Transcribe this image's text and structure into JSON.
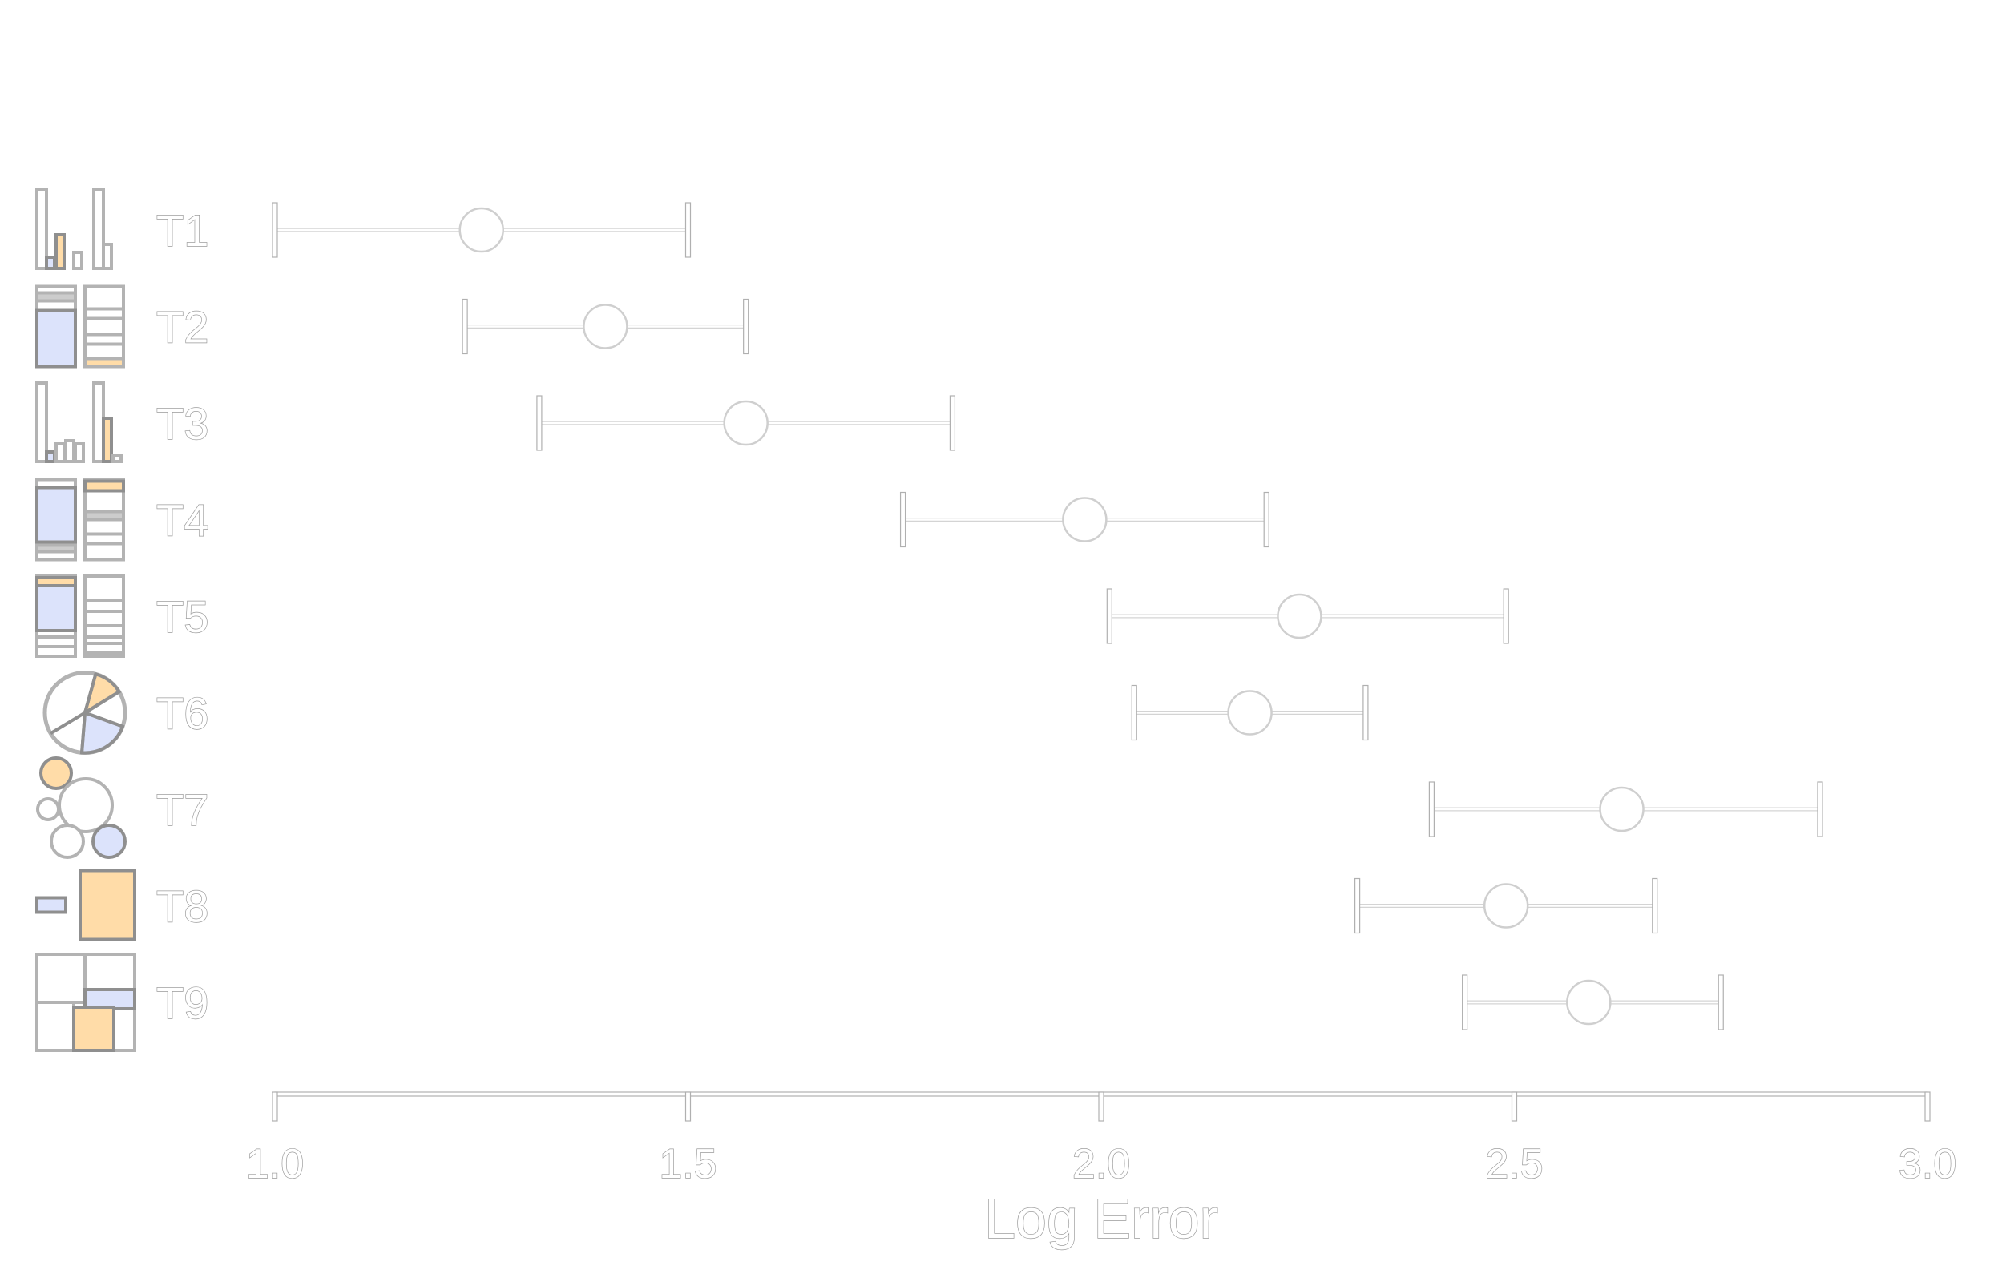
{
  "chart_data": {
    "type": "scatter",
    "title": "",
    "xlabel": "Log Error",
    "ylabel": "",
    "xlim": [
      1.0,
      3.0
    ],
    "grid": false,
    "x_ticks": [
      "1.0",
      "1.5",
      "2.0",
      "2.5",
      "3.0"
    ],
    "categories": [
      "T1",
      "T2",
      "T3",
      "T4",
      "T5",
      "T6",
      "T7",
      "T8",
      "T9"
    ],
    "category_icons": [
      "bar-chart-icon",
      "stacked-bar-icon",
      "bar-chart-icon",
      "stacked-bar-icon",
      "stacked-bar-icon",
      "pie-chart-icon",
      "bubble-chart-icon",
      "area-comparison-icon",
      "treemap-icon"
    ],
    "series": [
      {
        "means": [
          1.25,
          1.4,
          1.57,
          1.98,
          2.24,
          2.18,
          2.63,
          2.49,
          2.59
        ],
        "ci_low": [
          1.0,
          1.23,
          1.32,
          1.76,
          2.01,
          2.04,
          2.4,
          2.31,
          2.44
        ],
        "ci_high": [
          1.5,
          1.57,
          1.82,
          2.2,
          2.49,
          2.32,
          2.87,
          2.67,
          2.75
        ]
      }
    ],
    "colors": {
      "accent_orange": "#ffdca8",
      "accent_blue": "#dce3fb",
      "stroke": "#8f8f8f",
      "light_stroke": "#b3b3b3"
    }
  }
}
